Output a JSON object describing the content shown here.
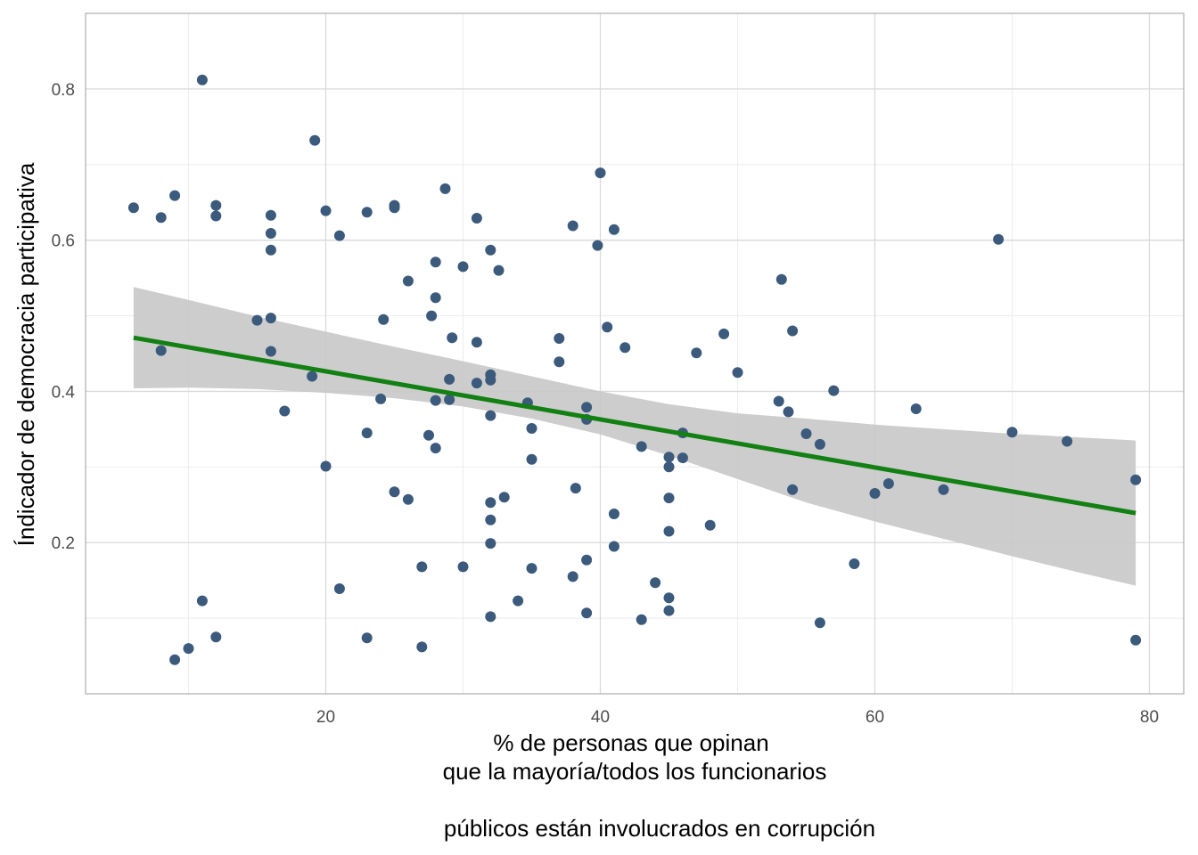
{
  "chart_data": {
    "type": "scatter",
    "title": "",
    "xlabel_lines": [
      "% de personas que opinan",
      "que la mayoría/todos  los funcionarios",
      "",
      "públicos están involucrados en corrupción"
    ],
    "ylabel": "Índicador de democracia participativa",
    "xlim": [
      2.5,
      82.5
    ],
    "ylim": [
      0.0,
      0.9
    ],
    "x_ticks": [
      20,
      40,
      60,
      80
    ],
    "y_ticks": [
      0.2,
      0.4,
      0.6,
      0.8
    ],
    "x_tick_labels": [
      "20",
      "40",
      "60",
      "80"
    ],
    "y_tick_labels": [
      "0.2",
      "0.4",
      "0.6",
      "0.8"
    ],
    "grid": true,
    "colors": {
      "points": "#3b5a7c",
      "trend": "#138013",
      "band": "#c8c8c8",
      "grid_major": "#d9d9d9",
      "grid_minor": "#ececec",
      "panel_border": "#b3b3b3"
    },
    "points": [
      [
        6.0,
        0.643
      ],
      [
        8.0,
        0.63
      ],
      [
        9.0,
        0.659
      ],
      [
        11.0,
        0.812
      ],
      [
        12.0,
        0.646
      ],
      [
        12.0,
        0.632
      ],
      [
        16.0,
        0.633
      ],
      [
        16.0,
        0.609
      ],
      [
        16.0,
        0.587
      ],
      [
        15.0,
        0.494
      ],
      [
        16.0,
        0.497
      ],
      [
        16.0,
        0.453
      ],
      [
        8.0,
        0.454
      ],
      [
        19.0,
        0.42
      ],
      [
        17.0,
        0.374
      ],
      [
        19.2,
        0.732
      ],
      [
        20.0,
        0.639
      ],
      [
        21.0,
        0.606
      ],
      [
        23.0,
        0.637
      ],
      [
        25.0,
        0.646
      ],
      [
        25.0,
        0.643
      ],
      [
        24.2,
        0.495
      ],
      [
        24.0,
        0.39
      ],
      [
        23.0,
        0.345
      ],
      [
        20.0,
        0.301
      ],
      [
        25.0,
        0.267
      ],
      [
        26.0,
        0.257
      ],
      [
        27.0,
        0.168
      ],
      [
        21.0,
        0.139
      ],
      [
        23.0,
        0.074
      ],
      [
        27.0,
        0.062
      ],
      [
        11.0,
        0.123
      ],
      [
        12.0,
        0.075
      ],
      [
        10.0,
        0.06
      ],
      [
        9.0,
        0.045
      ],
      [
        28.7,
        0.668
      ],
      [
        26.0,
        0.546
      ],
      [
        28.0,
        0.571
      ],
      [
        28.0,
        0.524
      ],
      [
        27.7,
        0.5
      ],
      [
        29.2,
        0.471
      ],
      [
        29.0,
        0.416
      ],
      [
        28.0,
        0.388
      ],
      [
        29.0,
        0.389
      ],
      [
        27.5,
        0.342
      ],
      [
        28.0,
        0.325
      ],
      [
        30.0,
        0.565
      ],
      [
        31.0,
        0.629
      ],
      [
        32.0,
        0.587
      ],
      [
        32.6,
        0.56
      ],
      [
        31.0,
        0.465
      ],
      [
        32.0,
        0.422
      ],
      [
        31.0,
        0.411
      ],
      [
        32.0,
        0.415
      ],
      [
        32.0,
        0.368
      ],
      [
        32.0,
        0.253
      ],
      [
        33.0,
        0.26
      ],
      [
        32.0,
        0.23
      ],
      [
        32.0,
        0.199
      ],
      [
        30.0,
        0.168
      ],
      [
        32.0,
        0.102
      ],
      [
        34.0,
        0.123
      ],
      [
        35.0,
        0.166
      ],
      [
        34.7,
        0.385
      ],
      [
        35.0,
        0.351
      ],
      [
        35.0,
        0.31
      ],
      [
        37.0,
        0.47
      ],
      [
        37.0,
        0.439
      ],
      [
        38.0,
        0.619
      ],
      [
        40.0,
        0.689
      ],
      [
        39.8,
        0.593
      ],
      [
        41.0,
        0.614
      ],
      [
        40.5,
        0.485
      ],
      [
        41.8,
        0.458
      ],
      [
        39.0,
        0.379
      ],
      [
        39.0,
        0.363
      ],
      [
        38.2,
        0.272
      ],
      [
        41.0,
        0.238
      ],
      [
        41.0,
        0.195
      ],
      [
        39.0,
        0.177
      ],
      [
        38.0,
        0.155
      ],
      [
        39.0,
        0.107
      ],
      [
        43.0,
        0.327
      ],
      [
        45.0,
        0.313
      ],
      [
        45.0,
        0.3
      ],
      [
        46.0,
        0.345
      ],
      [
        46.0,
        0.312
      ],
      [
        45.0,
        0.259
      ],
      [
        45.0,
        0.215
      ],
      [
        44.0,
        0.147
      ],
      [
        45.0,
        0.127
      ],
      [
        45.0,
        0.11
      ],
      [
        43.0,
        0.098
      ],
      [
        47.0,
        0.451
      ],
      [
        49.0,
        0.476
      ],
      [
        50.0,
        0.425
      ],
      [
        48.0,
        0.223
      ],
      [
        53.2,
        0.548
      ],
      [
        54.0,
        0.48
      ],
      [
        53.0,
        0.387
      ],
      [
        53.7,
        0.373
      ],
      [
        55.0,
        0.344
      ],
      [
        56.0,
        0.33
      ],
      [
        54.0,
        0.27
      ],
      [
        57.0,
        0.401
      ],
      [
        58.5,
        0.172
      ],
      [
        56.0,
        0.094
      ],
      [
        60.0,
        0.265
      ],
      [
        61.0,
        0.278
      ],
      [
        63.0,
        0.377
      ],
      [
        65.0,
        0.27
      ],
      [
        69.0,
        0.601
      ],
      [
        70.0,
        0.346
      ],
      [
        74.0,
        0.334
      ],
      [
        79.0,
        0.283
      ],
      [
        79.0,
        0.071
      ]
    ],
    "trend_line": {
      "x": [
        6.0,
        79.0
      ],
      "y": [
        0.471,
        0.239
      ]
    },
    "confidence_band": {
      "x": [
        6,
        10,
        15,
        20,
        25,
        30,
        35,
        40,
        45,
        50,
        55,
        60,
        65,
        70,
        75,
        79
      ],
      "upper": [
        0.538,
        0.521,
        0.499,
        0.479,
        0.459,
        0.44,
        0.42,
        0.4,
        0.383,
        0.371,
        0.364,
        0.356,
        0.35,
        0.344,
        0.339,
        0.335
      ],
      "lower": [
        0.404,
        0.405,
        0.403,
        0.398,
        0.391,
        0.38,
        0.364,
        0.343,
        0.315,
        0.284,
        0.253,
        0.228,
        0.205,
        0.182,
        0.16,
        0.143
      ]
    }
  }
}
